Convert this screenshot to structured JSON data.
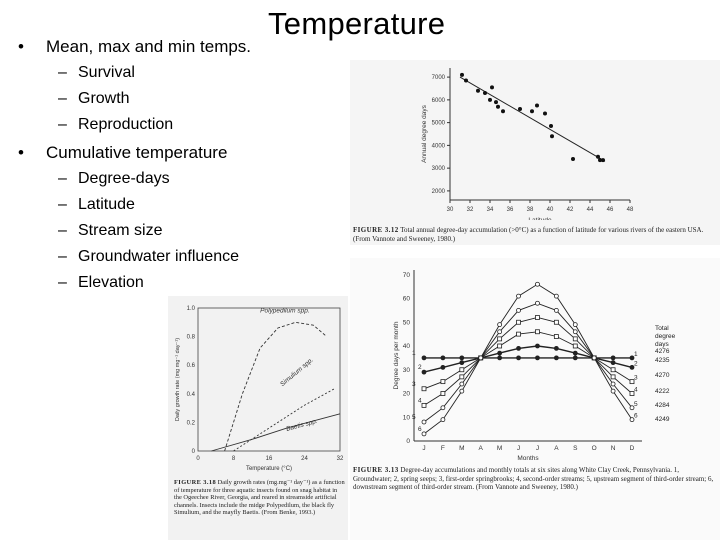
{
  "slide": {
    "title": "Temperature",
    "bullets": [
      {
        "text": "Mean, max and min temps.",
        "subs": [
          "Survival",
          "Growth",
          "Reproduction"
        ]
      },
      {
        "text": "Cumulative temperature",
        "subs": [
          "Degree-days",
          "Latitude",
          "Stream size",
          "Groundwater influence",
          "Elevation"
        ]
      }
    ]
  },
  "figure_312": {
    "caption_label": "FIGURE 3.12",
    "caption_text": "Total annual degree-day accumulation (>0°C) as a function of latitude for various rivers of the eastern USA. (From Vannote and Sweeney, 1980.)",
    "chart_data": {
      "type": "scatter",
      "xlabel": "Latitude",
      "ylabel": "Annual degree days",
      "xticks": [
        30,
        32,
        34,
        36,
        38,
        40,
        42,
        44,
        46,
        48
      ],
      "yticks": [
        2000,
        3000,
        4000,
        5000,
        6000,
        7000
      ],
      "xlim": [
        30,
        48
      ],
      "ylim": [
        1600,
        7400
      ],
      "points": [
        [
          31.2,
          7100
        ],
        [
          31.6,
          6850
        ],
        [
          32.8,
          6400
        ],
        [
          33.5,
          6300
        ],
        [
          34.0,
          6000
        ],
        [
          34.2,
          6550
        ],
        [
          34.6,
          5900
        ],
        [
          34.8,
          5700
        ],
        [
          35.3,
          5500
        ],
        [
          37.0,
          5600
        ],
        [
          38.2,
          5500
        ],
        [
          38.7,
          5750
        ],
        [
          39.5,
          5400
        ],
        [
          40.1,
          4850
        ],
        [
          40.2,
          4400
        ],
        [
          42.3,
          3400
        ],
        [
          44.8,
          3500
        ],
        [
          45.0,
          3350
        ],
        [
          45.3,
          3350
        ]
      ],
      "trendline": [
        [
          31,
          7000
        ],
        [
          45.5,
          3300
        ]
      ]
    }
  },
  "figure_318": {
    "caption_label": "FIGURE 3.18",
    "caption_text": "Daily growth rates (mg.mg⁻¹ day⁻¹) as a function of temperature for three aquatic insects found on snag habitat in the Ogeechee River, Georgia, and reared in streamside artificial channels. Insects include the midge Polypedilum, the black fly Simulium, and the mayfly Baetis. (From Benke, 1993.)",
    "chart_data": {
      "type": "line",
      "xlabel": "Temperature (°C)",
      "ylabel": "Daily growth rate (mg mg⁻¹ day⁻¹)",
      "xticks": [
        0,
        8,
        16,
        24,
        32
      ],
      "yticks": [
        "0",
        "0.2",
        "0.4",
        "0.6",
        "0.8",
        "1.0"
      ],
      "xlim": [
        0,
        32
      ],
      "ylim": [
        0,
        1.0
      ],
      "series": [
        {
          "name": "Polypedilum spp.",
          "points": [
            [
              6,
              0
            ],
            [
              10,
              0.4
            ],
            [
              14,
              0.72
            ],
            [
              18,
              0.86
            ],
            [
              22,
              0.9
            ],
            [
              26,
              0.88
            ],
            [
              29,
              0.8
            ]
          ]
        },
        {
          "name": "Simulium spp.",
          "points": [
            [
              8,
              0
            ],
            [
              16,
              0.16
            ],
            [
              24,
              0.32
            ],
            [
              31,
              0.44
            ]
          ]
        },
        {
          "name": "Baetis spp.",
          "points": [
            [
              3,
              0
            ],
            [
              12,
              0.08
            ],
            [
              20,
              0.16
            ],
            [
              32,
              0.26
            ]
          ]
        }
      ]
    }
  },
  "figure_313": {
    "caption_label": "FIGURE 3.13",
    "caption_text": "Degree-day accumulations and monthly totals at six sites along White Clay Creek, Pennsylvania. 1, Groundwater; 2, spring seeps; 3, first-order springbrooks; 4, second-order streams; 5, upstream segment of third-order stream; 6, downstream segment of third-order stream. (From Vannote and Sweeney, 1980.)",
    "chart_data": {
      "type": "line",
      "xlabel": "Months",
      "ylabel": "Degree days per month",
      "categories": [
        "J",
        "F",
        "M",
        "A",
        "M",
        "J",
        "J",
        "A",
        "S",
        "O",
        "N",
        "D"
      ],
      "yticks": [
        0,
        10,
        20,
        30,
        40,
        50,
        60,
        70
      ],
      "ylim": [
        0,
        72
      ],
      "legend_title": "Total degree days",
      "series": [
        {
          "name": "1",
          "total": "4276",
          "values": [
            35,
            35,
            35,
            35,
            35,
            35,
            35,
            35,
            35,
            35,
            35,
            35
          ]
        },
        {
          "name": "2",
          "total": "4235",
          "values": [
            29,
            31,
            33,
            35,
            37,
            39,
            40,
            39,
            37,
            35,
            33,
            31
          ]
        },
        {
          "name": "3",
          "total": "4270",
          "values": [
            22,
            25,
            30,
            35,
            40,
            45,
            46,
            44,
            40,
            35,
            30,
            25
          ]
        },
        {
          "name": "4",
          "total": "4222",
          "values": [
            15,
            20,
            27,
            35,
            43,
            50,
            52,
            50,
            43,
            35,
            27,
            20
          ]
        },
        {
          "name": "5",
          "total": "4284",
          "values": [
            8,
            14,
            24,
            35,
            46,
            55,
            58,
            55,
            46,
            35,
            24,
            14
          ]
        },
        {
          "name": "6",
          "total": "4249",
          "values": [
            3,
            9,
            21,
            35,
            49,
            61,
            66,
            61,
            49,
            35,
            21,
            9
          ]
        }
      ]
    }
  }
}
